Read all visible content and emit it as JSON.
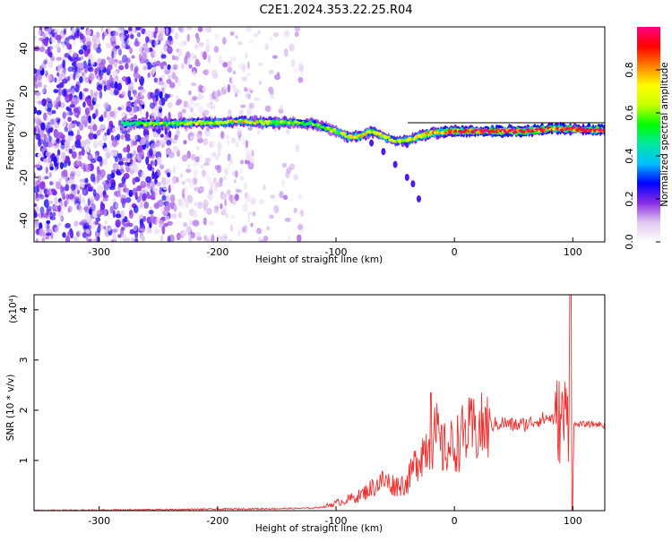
{
  "title": "C2E1.2024.353.22.25.R04",
  "chart_data": [
    {
      "type": "heatmap",
      "xlabel": "Height of straight line (km)",
      "ylabel": "Frequency (Hz)",
      "xlim": [
        -355,
        127
      ],
      "ylim": [
        -50,
        50
      ],
      "xticks": [
        -300,
        -200,
        -100,
        0,
        100
      ],
      "yticks": [
        -40,
        -20,
        0,
        20,
        40
      ],
      "grid": false,
      "colorbar": {
        "label": "Normalized spectral amplitude",
        "ticks": [
          0.0,
          0.2,
          0.4,
          0.6,
          0.8
        ],
        "range": [
          0,
          1
        ],
        "colormap": [
          "#ffffff",
          "#e0c8f0",
          "#8a2be2",
          "#0000ff",
          "#00bfff",
          "#00e8a0",
          "#00ff00",
          "#c8ff00",
          "#ffff00",
          "#ff8000",
          "#ff0000",
          "#ff0080"
        ]
      },
      "ridge": [
        {
          "x": -280,
          "f": 5.0,
          "amp": 0.45
        },
        {
          "x": -260,
          "f": 5.0,
          "amp": 0.55
        },
        {
          "x": -240,
          "f": 5.0,
          "amp": 0.6
        },
        {
          "x": -220,
          "f": 5.5,
          "amp": 0.65
        },
        {
          "x": -200,
          "f": 5.5,
          "amp": 0.65
        },
        {
          "x": -180,
          "f": 6.0,
          "amp": 0.7
        },
        {
          "x": -160,
          "f": 5.5,
          "amp": 0.65
        },
        {
          "x": -140,
          "f": 5.5,
          "amp": 0.6
        },
        {
          "x": -120,
          "f": 5.0,
          "amp": 0.55
        },
        {
          "x": -100,
          "f": 1.5,
          "amp": 0.6
        },
        {
          "x": -90,
          "f": -1.0,
          "amp": 0.65
        },
        {
          "x": -80,
          "f": -1.0,
          "amp": 0.7
        },
        {
          "x": -70,
          "f": 1.5,
          "amp": 0.65
        },
        {
          "x": -60,
          "f": -1.0,
          "amp": 0.7
        },
        {
          "x": -50,
          "f": -3.0,
          "amp": 0.6
        },
        {
          "x": -40,
          "f": -3.0,
          "amp": 0.65
        },
        {
          "x": -30,
          "f": -1.0,
          "amp": 0.7
        },
        {
          "x": -20,
          "f": 0.5,
          "amp": 0.75
        },
        {
          "x": 0,
          "f": 1.5,
          "amp": 0.85
        },
        {
          "x": 20,
          "f": 1.5,
          "amp": 0.95
        },
        {
          "x": 40,
          "f": 1.5,
          "amp": 0.95
        },
        {
          "x": 60,
          "f": 1.5,
          "amp": 0.9
        },
        {
          "x": 80,
          "f": 2.5,
          "amp": 0.85
        },
        {
          "x": 100,
          "f": 2.5,
          "amp": 0.85
        },
        {
          "x": 120,
          "f": 2.0,
          "amp": 0.9
        }
      ],
      "branch": [
        {
          "x": -70,
          "f": -4.0
        },
        {
          "x": -60,
          "f": -8.0
        },
        {
          "x": -50,
          "f": -14.0
        },
        {
          "x": -40,
          "f": -20.0
        },
        {
          "x": -35,
          "f": -23.0
        },
        {
          "x": -30,
          "f": -30.0
        }
      ]
    },
    {
      "type": "line",
      "xlabel": "Height of straight line (km)",
      "ylabel": "SNR (10 * v/v)",
      "y_multiplier": "(x10⁴)",
      "xlim": [
        -355,
        127
      ],
      "ylim": [
        0,
        4.3
      ],
      "xticks": [
        -300,
        -200,
        -100,
        0,
        100
      ],
      "yticks": [
        1,
        2,
        3,
        4
      ],
      "grid": false,
      "color": "#ee3030",
      "series": [
        {
          "x": [
            -355,
            -300,
            -250,
            -200,
            -150,
            -120,
            -110,
            -100,
            -90,
            -80,
            -70,
            -60,
            -50,
            -40,
            -30,
            -20,
            -15,
            -10,
            0,
            10,
            20,
            30,
            40,
            50,
            60,
            70,
            80,
            90,
            95,
            100,
            105,
            110,
            120,
            127
          ],
          "values": [
            0.0,
            0.01,
            0.02,
            0.03,
            0.04,
            0.05,
            0.08,
            0.15,
            0.22,
            0.3,
            0.45,
            0.6,
            0.5,
            0.55,
            1.1,
            1.4,
            1.5,
            1.2,
            1.3,
            1.55,
            1.6,
            1.7,
            1.75,
            1.7,
            1.72,
            1.8,
            1.85,
            1.8,
            1.9,
            1.7,
            1.72,
            1.72,
            1.72,
            1.7
          ]
        }
      ]
    }
  ]
}
